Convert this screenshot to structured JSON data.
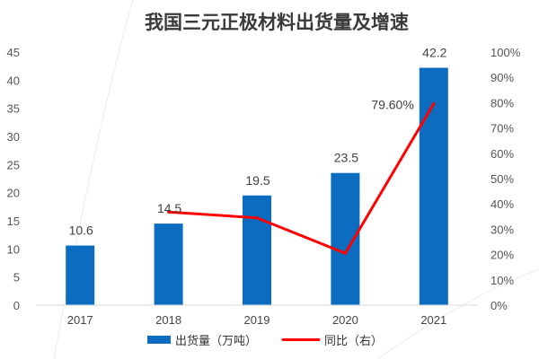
{
  "chart_data": {
    "type": "bar",
    "title": "我国三元正极材料出货量及增速",
    "categories": [
      "2017",
      "2018",
      "2019",
      "2020",
      "2021"
    ],
    "series": [
      {
        "name": "出货量（万吨）",
        "type": "bar",
        "axis": "left",
        "values": [
          10.6,
          14.5,
          19.5,
          23.5,
          42.2
        ],
        "value_labels": [
          "10.6",
          "14.5",
          "19.5",
          "23.5",
          "42.2"
        ],
        "color": "#0b6cc0"
      },
      {
        "name": "同比（右）",
        "type": "line",
        "axis": "right",
        "values": [
          null,
          36.8,
          34.5,
          20.5,
          79.6
        ],
        "value_labels": [
          null,
          null,
          null,
          null,
          "79.60%"
        ],
        "color": "#ff0000"
      }
    ],
    "ylim_left": [
      0,
      45
    ],
    "yticks_left": [
      "0",
      "5",
      "10",
      "15",
      "20",
      "25",
      "30",
      "35",
      "40",
      "45"
    ],
    "ylim_right": [
      0,
      100
    ],
    "yticks_right": [
      "0%",
      "10%",
      "20%",
      "30%",
      "40%",
      "50%",
      "60%",
      "70%",
      "80%",
      "90%",
      "100%"
    ],
    "grid": false,
    "legend_position": "bottom"
  }
}
